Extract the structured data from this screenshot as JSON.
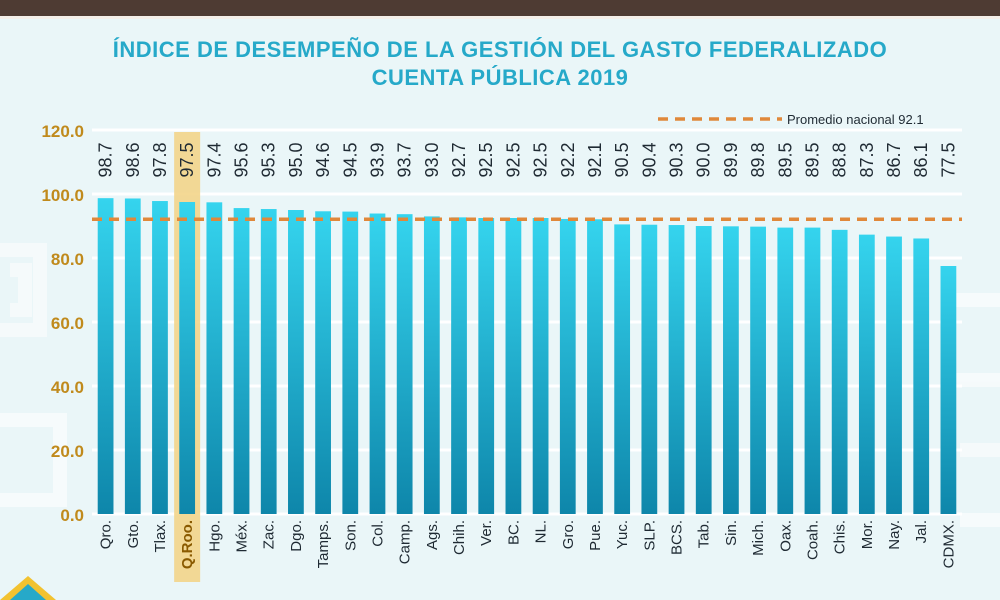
{
  "title_line1": "ÍNDICE DE DESEMPEÑO DE LA GESTIÓN DEL GASTO FEDERALIZADO",
  "title_line2": "CUENTA PÚBLICA 2019",
  "colors": {
    "bar_top": "#35d4ee",
    "bar_bottom": "#0e86aa",
    "axis_text": "#c08a1c",
    "average_line": "#e0883a",
    "highlight": "#f3d58a",
    "title": "#26a9c9",
    "label_text": "#1f2a33"
  },
  "chart_data": {
    "type": "bar",
    "categories": [
      "Qro.",
      "Gto.",
      "Tlax.",
      "Q.Roo.",
      "Hgo.",
      "Méx.",
      "Zac.",
      "Dgo.",
      "Tamps.",
      "Son.",
      "Col.",
      "Camp.",
      "Ags.",
      "Chih.",
      "Ver.",
      "BC.",
      "NL.",
      "Gro.",
      "Pue.",
      "Yuc.",
      "SLP.",
      "BCS.",
      "Tab.",
      "Sin.",
      "Mich.",
      "Oax.",
      "Coah.",
      "Chis.",
      "Mor.",
      "Nay.",
      "Jal.",
      "CDMX."
    ],
    "values": [
      98.7,
      98.6,
      97.8,
      97.5,
      97.4,
      95.6,
      95.3,
      95.0,
      94.6,
      94.5,
      93.9,
      93.7,
      93.0,
      92.7,
      92.5,
      92.5,
      92.5,
      92.2,
      92.1,
      90.5,
      90.4,
      90.3,
      90.0,
      89.9,
      89.8,
      89.5,
      89.5,
      88.8,
      87.3,
      86.7,
      86.1,
      77.5
    ],
    "value_labels": [
      "98.7",
      "98.6",
      "97.8",
      "97.5",
      "97.4",
      "95.6",
      "95.3",
      "95.0",
      "94.6",
      "94.5",
      "93.9",
      "93.7",
      "93.0",
      "92.7",
      "92.5",
      "92.5",
      "92.5",
      "92.2",
      "92.1",
      "90.5",
      "90.4",
      "90.3",
      "90.0",
      "89.9",
      "89.8",
      "89.5",
      "89.5",
      "88.8",
      "87.3",
      "86.7",
      "86.1",
      "77.5"
    ],
    "highlighted_category": "Q.Roo.",
    "ylim": [
      0,
      120
    ],
    "yticks": [
      0,
      20,
      40,
      60,
      80,
      100,
      120
    ],
    "ytick_labels": [
      "0.0",
      "20.0",
      "40.0",
      "60.0",
      "80.0",
      "100.0",
      "120.0"
    ],
    "reference_line": {
      "label": "Promedio nacional 92.1",
      "value": 92.1
    },
    "grid": true
  }
}
